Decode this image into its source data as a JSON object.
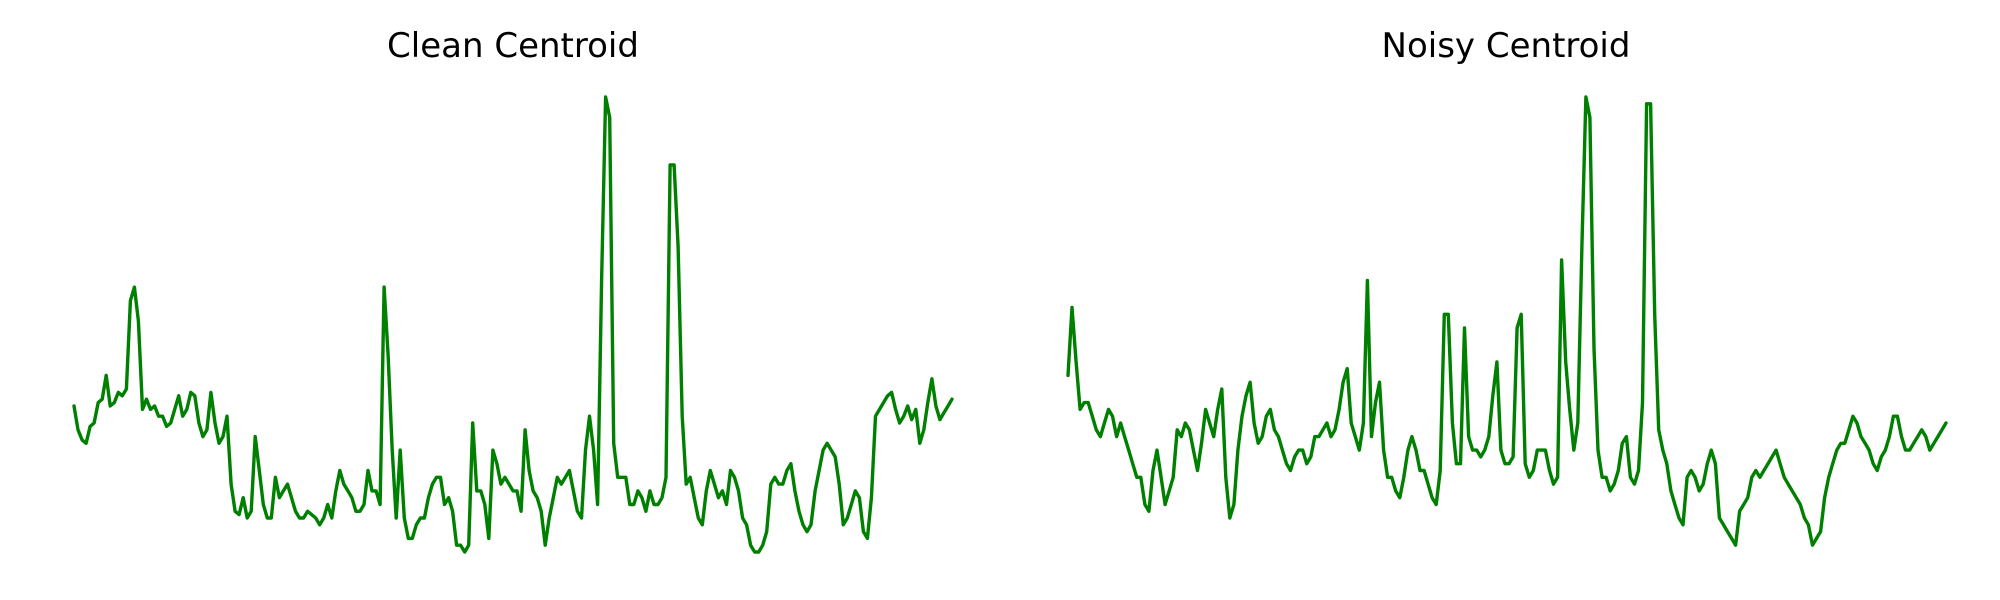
{
  "chart_data": [
    {
      "type": "line",
      "title": "Clean Centroid",
      "xlabel": "",
      "ylabel": "",
      "grid": false,
      "axes_visible": false,
      "color": "#008000",
      "series": [
        {
          "values": [
            0.265,
            0.23,
            0.215,
            0.21,
            0.235,
            0.24,
            0.27,
            0.275,
            0.31,
            0.265,
            0.27,
            0.285,
            0.28,
            0.29,
            0.42,
            0.44,
            0.39,
            0.26,
            0.275,
            0.26,
            0.265,
            0.25,
            0.25,
            0.235,
            0.24,
            0.26,
            0.28,
            0.25,
            0.26,
            0.285,
            0.28,
            0.24,
            0.22,
            0.23,
            0.285,
            0.24,
            0.21,
            0.22,
            0.25,
            0.15,
            0.11,
            0.105,
            0.13,
            0.1,
            0.11,
            0.22,
            0.17,
            0.12,
            0.1,
            0.1,
            0.16,
            0.13,
            0.14,
            0.15,
            0.13,
            0.11,
            0.1,
            0.1,
            0.11,
            0.105,
            0.1,
            0.09,
            0.1,
            0.12,
            0.1,
            0.14,
            0.17,
            0.15,
            0.14,
            0.13,
            0.11,
            0.11,
            0.12,
            0.17,
            0.14,
            0.14,
            0.12,
            0.44,
            0.34,
            0.2,
            0.1,
            0.2,
            0.1,
            0.07,
            0.07,
            0.09,
            0.1,
            0.1,
            0.13,
            0.15,
            0.16,
            0.16,
            0.12,
            0.13,
            0.11,
            0.06,
            0.06,
            0.05,
            0.06,
            0.24,
            0.14,
            0.14,
            0.12,
            0.07,
            0.2,
            0.18,
            0.15,
            0.16,
            0.15,
            0.14,
            0.14,
            0.11,
            0.23,
            0.17,
            0.14,
            0.13,
            0.11,
            0.06,
            0.1,
            0.13,
            0.16,
            0.15,
            0.16,
            0.17,
            0.14,
            0.11,
            0.1,
            0.2,
            0.25,
            0.2,
            0.12,
            0.45,
            0.72,
            0.69,
            0.21,
            0.16,
            0.16,
            0.16,
            0.12,
            0.12,
            0.14,
            0.13,
            0.11,
            0.14,
            0.12,
            0.12,
            0.13,
            0.16,
            0.62,
            0.62,
            0.5,
            0.25,
            0.15,
            0.16,
            0.13,
            0.1,
            0.09,
            0.14,
            0.17,
            0.15,
            0.13,
            0.14,
            0.12,
            0.17,
            0.16,
            0.14,
            0.1,
            0.09,
            0.06,
            0.05,
            0.05,
            0.06,
            0.08,
            0.15,
            0.16,
            0.15,
            0.15,
            0.17,
            0.18,
            0.14,
            0.11,
            0.09,
            0.08,
            0.09,
            0.14,
            0.17,
            0.2,
            0.21,
            0.2,
            0.19,
            0.15,
            0.09,
            0.1,
            0.12,
            0.14,
            0.13,
            0.08,
            0.07,
            0.13,
            0.25,
            0.26,
            0.27,
            0.28,
            0.285,
            0.26,
            0.24,
            0.25,
            0.265,
            0.245,
            0.26,
            0.21,
            0.23,
            0.27,
            0.305,
            0.265,
            0.245,
            0.255,
            0.265,
            0.275
          ]
        }
      ]
    },
    {
      "type": "line",
      "title": "Noisy Centroid",
      "xlabel": "",
      "ylabel": "",
      "grid": false,
      "axes_visible": false,
      "color": "#008000",
      "series": [
        {
          "values": [
            0.31,
            0.41,
            0.33,
            0.26,
            0.27,
            0.27,
            0.25,
            0.23,
            0.22,
            0.24,
            0.26,
            0.25,
            0.22,
            0.24,
            0.22,
            0.2,
            0.18,
            0.16,
            0.16,
            0.12,
            0.11,
            0.17,
            0.2,
            0.16,
            0.12,
            0.14,
            0.16,
            0.23,
            0.22,
            0.24,
            0.23,
            0.2,
            0.17,
            0.21,
            0.26,
            0.24,
            0.22,
            0.26,
            0.29,
            0.16,
            0.1,
            0.12,
            0.2,
            0.25,
            0.28,
            0.3,
            0.24,
            0.21,
            0.22,
            0.25,
            0.26,
            0.23,
            0.22,
            0.2,
            0.18,
            0.17,
            0.19,
            0.2,
            0.2,
            0.18,
            0.19,
            0.22,
            0.22,
            0.23,
            0.24,
            0.22,
            0.23,
            0.26,
            0.3,
            0.32,
            0.24,
            0.22,
            0.2,
            0.24,
            0.45,
            0.22,
            0.27,
            0.3,
            0.2,
            0.16,
            0.16,
            0.14,
            0.13,
            0.16,
            0.2,
            0.22,
            0.2,
            0.17,
            0.17,
            0.15,
            0.13,
            0.12,
            0.17,
            0.4,
            0.4,
            0.24,
            0.18,
            0.18,
            0.38,
            0.22,
            0.2,
            0.2,
            0.19,
            0.2,
            0.22,
            0.28,
            0.33,
            0.2,
            0.18,
            0.18,
            0.19,
            0.38,
            0.4,
            0.18,
            0.16,
            0.17,
            0.2,
            0.2,
            0.2,
            0.17,
            0.15,
            0.16,
            0.48,
            0.33,
            0.26,
            0.2,
            0.24,
            0.5,
            0.72,
            0.69,
            0.35,
            0.2,
            0.16,
            0.16,
            0.14,
            0.15,
            0.17,
            0.21,
            0.22,
            0.16,
            0.15,
            0.17,
            0.27,
            0.71,
            0.71,
            0.4,
            0.23,
            0.2,
            0.18,
            0.14,
            0.12,
            0.1,
            0.09,
            0.16,
            0.17,
            0.16,
            0.14,
            0.15,
            0.18,
            0.2,
            0.18,
            0.1,
            0.09,
            0.08,
            0.07,
            0.06,
            0.11,
            0.12,
            0.13,
            0.16,
            0.17,
            0.16,
            0.17,
            0.18,
            0.19,
            0.2,
            0.18,
            0.16,
            0.15,
            0.14,
            0.13,
            0.12,
            0.1,
            0.09,
            0.06,
            0.07,
            0.08,
            0.13,
            0.16,
            0.18,
            0.2,
            0.21,
            0.21,
            0.23,
            0.25,
            0.24,
            0.22,
            0.21,
            0.2,
            0.18,
            0.17,
            0.19,
            0.2,
            0.22,
            0.25,
            0.25,
            0.22,
            0.2,
            0.2,
            0.21,
            0.22,
            0.23,
            0.22,
            0.2,
            0.21,
            0.22,
            0.23,
            0.24
          ]
        }
      ]
    }
  ]
}
